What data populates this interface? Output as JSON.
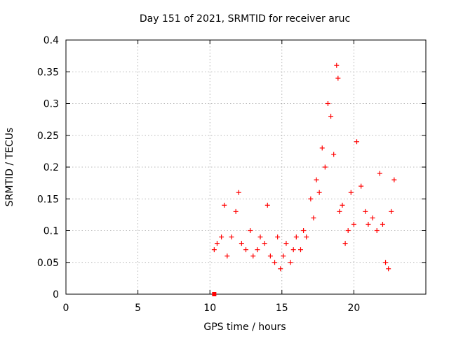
{
  "chart_data": {
    "type": "scatter",
    "title": "Day 151 of 2021, SRMTID for receiver aruc",
    "xlabel": "GPS time / hours",
    "ylabel": "SRMTID / TECUs",
    "xlim": [
      0,
      25
    ],
    "ylim": [
      0,
      0.4
    ],
    "x_ticks": [
      0,
      5,
      10,
      15,
      20
    ],
    "y_ticks": [
      0,
      0.05,
      0.1,
      0.15,
      0.2,
      0.25,
      0.3,
      0.35,
      0.4
    ],
    "x_tick_labels": [
      "0",
      "5",
      "10",
      "15",
      "20"
    ],
    "y_tick_labels": [
      "0",
      "0.05",
      "0.1",
      "0.15",
      "0.2",
      "0.25",
      "0.3",
      "0.35",
      "0.4"
    ],
    "grid": true,
    "marker": "+",
    "marker_color": "#ff0000",
    "series": [
      {
        "name": "SRMTID",
        "x": [
          10.3,
          10.5,
          10.8,
          11.0,
          11.2,
          11.5,
          11.8,
          12.0,
          12.2,
          12.5,
          12.8,
          13.0,
          13.3,
          13.5,
          13.8,
          14.0,
          14.2,
          14.5,
          14.7,
          14.9,
          15.1,
          15.3,
          15.6,
          15.8,
          16.0,
          16.3,
          16.5,
          16.7,
          17.0,
          17.2,
          17.4,
          17.6,
          17.8,
          18.0,
          18.2,
          18.4,
          18.6,
          18.8,
          18.9,
          19.0,
          19.2,
          19.4,
          19.6,
          19.8,
          20.0,
          20.2,
          20.5,
          20.8,
          21.0,
          21.3,
          21.6,
          21.8,
          22.0,
          22.2,
          22.4,
          22.6,
          22.8
        ],
        "y": [
          0.07,
          0.08,
          0.09,
          0.14,
          0.06,
          0.09,
          0.13,
          0.16,
          0.08,
          0.07,
          0.1,
          0.06,
          0.07,
          0.09,
          0.08,
          0.14,
          0.06,
          0.05,
          0.09,
          0.04,
          0.06,
          0.08,
          0.05,
          0.07,
          0.09,
          0.07,
          0.1,
          0.09,
          0.15,
          0.12,
          0.18,
          0.16,
          0.23,
          0.2,
          0.3,
          0.28,
          0.22,
          0.36,
          0.34,
          0.13,
          0.14,
          0.08,
          0.1,
          0.16,
          0.11,
          0.24,
          0.17,
          0.13,
          0.11,
          0.12,
          0.1,
          0.19,
          0.11,
          0.05,
          0.04,
          0.13,
          0.18
        ]
      },
      {
        "name": "zero-marker",
        "x": [
          10.3
        ],
        "y": [
          0
        ]
      }
    ],
    "legend": "none"
  }
}
